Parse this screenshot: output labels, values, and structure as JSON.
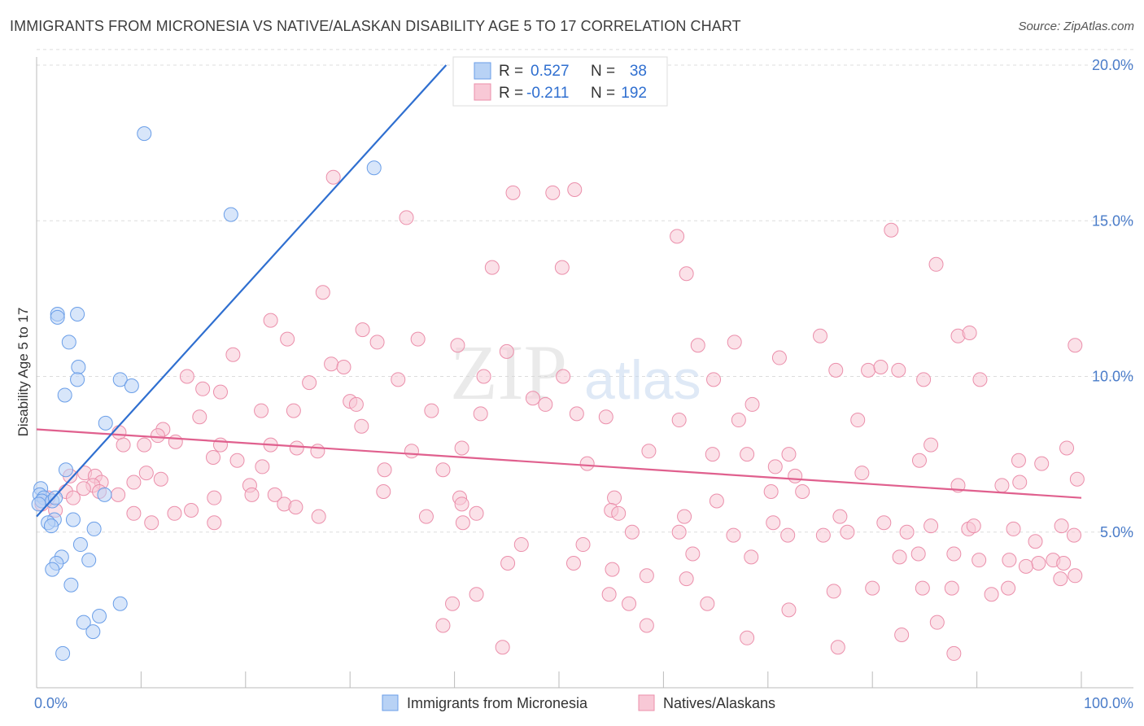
{
  "header": {
    "title": "IMMIGRANTS FROM MICRONESIA VS NATIVE/ALASKAN DISABILITY AGE 5 TO 17 CORRELATION CHART",
    "source": "Source: ZipAtlas.com"
  },
  "watermark": {
    "zip": "ZIP",
    "atlas": "atlas"
  },
  "colors": {
    "blue_fill": "#b8d2f5",
    "blue_stroke": "#6a9ee8",
    "blue_line": "#2f6fd0",
    "pink_fill": "#f8c8d6",
    "pink_stroke": "#eb8fab",
    "pink_line": "#e0608e",
    "value_text": "#2f6fd0",
    "grid": "#dddddd"
  },
  "legend": {
    "blue": {
      "r_label": "R =",
      "r_value": "0.527",
      "n_label": "N =",
      "n_value": "38"
    },
    "pink": {
      "r_label": "R =",
      "r_value": "-0.211",
      "n_label": "N =",
      "n_value": "192"
    }
  },
  "chart_data": {
    "type": "scatter",
    "title": "IMMIGRANTS FROM MICRONESIA VS NATIVE/ALASKAN DISABILITY AGE 5 TO 17 CORRELATION CHART",
    "xlabel": "",
    "ylabel": "Disability Age 5 to 17",
    "xlim": [
      0,
      100
    ],
    "ylim": [
      0,
      20
    ],
    "x_tick_labels": [
      "0.0%",
      "100.0%"
    ],
    "y_ticks": [
      5,
      10,
      15,
      20
    ],
    "y_tick_labels": [
      "5.0%",
      "10.0%",
      "15.0%",
      "20.0%"
    ],
    "grid": true,
    "legend_position": "top-center",
    "series": [
      {
        "name": "Immigrants from Micronesia",
        "color": "#6a9ee8",
        "trend": {
          "x": [
            0,
            39.2
          ],
          "y": [
            5.5,
            20.0
          ]
        },
        "points": [
          [
            10.3,
            17.8
          ],
          [
            32.3,
            16.7
          ],
          [
            18.6,
            15.2
          ],
          [
            2.0,
            12.0
          ],
          [
            3.9,
            12.0
          ],
          [
            2.0,
            11.9
          ],
          [
            3.1,
            11.1
          ],
          [
            4.0,
            10.3
          ],
          [
            3.9,
            9.9
          ],
          [
            8.0,
            9.9
          ],
          [
            9.1,
            9.7
          ],
          [
            2.7,
            9.4
          ],
          [
            6.6,
            8.5
          ],
          [
            2.8,
            7.0
          ],
          [
            0.4,
            6.4
          ],
          [
            0.3,
            6.2
          ],
          [
            0.7,
            6.1
          ],
          [
            0.5,
            6.0
          ],
          [
            1.5,
            6.0
          ],
          [
            1.8,
            6.1
          ],
          [
            6.5,
            6.2
          ],
          [
            1.7,
            5.4
          ],
          [
            3.5,
            5.4
          ],
          [
            1.1,
            5.3
          ],
          [
            1.4,
            5.2
          ],
          [
            5.5,
            5.1
          ],
          [
            4.2,
            4.6
          ],
          [
            2.4,
            4.2
          ],
          [
            5.0,
            4.1
          ],
          [
            1.9,
            4.0
          ],
          [
            1.5,
            3.8
          ],
          [
            3.3,
            3.3
          ],
          [
            8.0,
            2.7
          ],
          [
            6.0,
            2.3
          ],
          [
            4.5,
            2.1
          ],
          [
            5.4,
            1.8
          ],
          [
            2.5,
            1.1
          ],
          [
            0.2,
            5.9
          ]
        ]
      },
      {
        "name": "Natives/Alaskans",
        "color": "#eb8fab",
        "trend": {
          "x": [
            0,
            100
          ],
          "y": [
            8.3,
            6.1
          ]
        },
        "points": [
          [
            28.4,
            16.4
          ],
          [
            51.5,
            16.0
          ],
          [
            45.6,
            15.9
          ],
          [
            49.4,
            15.9
          ],
          [
            35.4,
            15.1
          ],
          [
            61.3,
            14.5
          ],
          [
            81.8,
            14.7
          ],
          [
            43.6,
            13.5
          ],
          [
            50.3,
            13.5
          ],
          [
            86.1,
            13.6
          ],
          [
            62.2,
            13.3
          ],
          [
            27.4,
            12.7
          ],
          [
            22.4,
            11.8
          ],
          [
            31.2,
            11.5
          ],
          [
            24.0,
            11.2
          ],
          [
            32.6,
            11.1
          ],
          [
            36.5,
            11.2
          ],
          [
            40.3,
            11.0
          ],
          [
            63.3,
            11.0
          ],
          [
            66.8,
            11.1
          ],
          [
            75.0,
            11.3
          ],
          [
            88.2,
            11.3
          ],
          [
            89.3,
            11.4
          ],
          [
            99.4,
            11.0
          ],
          [
            18.8,
            10.7
          ],
          [
            45.0,
            10.8
          ],
          [
            71.1,
            10.6
          ],
          [
            28.2,
            10.4
          ],
          [
            29.4,
            10.3
          ],
          [
            76.5,
            10.2
          ],
          [
            79.6,
            10.2
          ],
          [
            80.8,
            10.3
          ],
          [
            82.5,
            10.2
          ],
          [
            14.4,
            10.0
          ],
          [
            26.1,
            9.8
          ],
          [
            34.6,
            9.9
          ],
          [
            42.8,
            10.0
          ],
          [
            50.4,
            10.0
          ],
          [
            64.8,
            9.9
          ],
          [
            84.9,
            9.9
          ],
          [
            90.3,
            9.9
          ],
          [
            15.9,
            9.6
          ],
          [
            17.6,
            9.5
          ],
          [
            30.0,
            9.2
          ],
          [
            47.5,
            9.3
          ],
          [
            30.6,
            9.1
          ],
          [
            48.7,
            9.1
          ],
          [
            68.5,
            9.1
          ],
          [
            21.5,
            8.9
          ],
          [
            24.6,
            8.9
          ],
          [
            31.1,
            8.4
          ],
          [
            37.8,
            8.9
          ],
          [
            42.5,
            8.8
          ],
          [
            51.7,
            8.8
          ],
          [
            54.5,
            8.7
          ],
          [
            61.5,
            8.6
          ],
          [
            67.2,
            8.6
          ],
          [
            78.6,
            8.6
          ],
          [
            15.6,
            8.7
          ],
          [
            12.1,
            8.3
          ],
          [
            7.9,
            8.2
          ],
          [
            11.6,
            8.1
          ],
          [
            8.3,
            7.8
          ],
          [
            10.3,
            7.8
          ],
          [
            13.3,
            7.9
          ],
          [
            17.6,
            7.8
          ],
          [
            22.4,
            7.8
          ],
          [
            24.9,
            7.7
          ],
          [
            35.9,
            7.6
          ],
          [
            40.7,
            7.7
          ],
          [
            26.9,
            7.6
          ],
          [
            16.9,
            7.4
          ],
          [
            19.2,
            7.3
          ],
          [
            21.6,
            7.1
          ],
          [
            33.3,
            7.0
          ],
          [
            38.9,
            7.0
          ],
          [
            52.7,
            7.2
          ],
          [
            58.6,
            7.6
          ],
          [
            64.7,
            7.5
          ],
          [
            68.0,
            7.5
          ],
          [
            70.7,
            7.1
          ],
          [
            72.0,
            7.5
          ],
          [
            72.6,
            6.8
          ],
          [
            79.0,
            6.9
          ],
          [
            84.5,
            7.3
          ],
          [
            85.6,
            7.8
          ],
          [
            94.0,
            7.3
          ],
          [
            96.2,
            7.2
          ],
          [
            98.6,
            7.7
          ],
          [
            3.2,
            6.8
          ],
          [
            4.6,
            6.9
          ],
          [
            5.6,
            6.8
          ],
          [
            9.3,
            6.6
          ],
          [
            10.5,
            6.9
          ],
          [
            11.9,
            6.7
          ],
          [
            20.4,
            6.5
          ],
          [
            22.8,
            6.2
          ],
          [
            6.2,
            6.6
          ],
          [
            5.4,
            6.5
          ],
          [
            4.5,
            6.4
          ],
          [
            6.0,
            6.3
          ],
          [
            7.8,
            6.2
          ],
          [
            2.8,
            6.3
          ],
          [
            3.5,
            6.1
          ],
          [
            1.1,
            6.1
          ],
          [
            0.5,
            5.9
          ],
          [
            1.8,
            5.7
          ],
          [
            17.0,
            6.1
          ],
          [
            20.6,
            6.2
          ],
          [
            23.7,
            5.9
          ],
          [
            33.2,
            6.3
          ],
          [
            40.5,
            6.1
          ],
          [
            40.7,
            5.9
          ],
          [
            55.3,
            6.1
          ],
          [
            65.1,
            6.0
          ],
          [
            70.3,
            6.3
          ],
          [
            73.3,
            6.3
          ],
          [
            88.2,
            6.5
          ],
          [
            92.4,
            6.5
          ],
          [
            94.1,
            6.6
          ],
          [
            99.6,
            6.7
          ],
          [
            9.3,
            5.6
          ],
          [
            13.2,
            5.6
          ],
          [
            14.8,
            5.7
          ],
          [
            24.8,
            5.8
          ],
          [
            37.3,
            5.5
          ],
          [
            42.1,
            5.6
          ],
          [
            55.0,
            5.7
          ],
          [
            55.7,
            5.6
          ],
          [
            62.0,
            5.5
          ],
          [
            70.5,
            5.3
          ],
          [
            76.9,
            5.5
          ],
          [
            81.1,
            5.3
          ],
          [
            85.6,
            5.2
          ],
          [
            89.2,
            5.1
          ],
          [
            93.5,
            5.1
          ],
          [
            98.1,
            5.2
          ],
          [
            11.0,
            5.3
          ],
          [
            17.0,
            5.3
          ],
          [
            27.0,
            5.5
          ],
          [
            40.8,
            5.3
          ],
          [
            57.0,
            5.0
          ],
          [
            61.5,
            5.0
          ],
          [
            66.7,
            4.9
          ],
          [
            71.9,
            4.9
          ],
          [
            75.3,
            4.9
          ],
          [
            77.6,
            5.0
          ],
          [
            83.3,
            5.0
          ],
          [
            89.7,
            5.2
          ],
          [
            95.6,
            4.7
          ],
          [
            99.3,
            4.9
          ],
          [
            46.4,
            4.6
          ],
          [
            52.3,
            4.6
          ],
          [
            62.8,
            4.3
          ],
          [
            68.4,
            4.2
          ],
          [
            82.6,
            4.2
          ],
          [
            84.4,
            4.3
          ],
          [
            87.8,
            4.3
          ],
          [
            90.2,
            4.1
          ],
          [
            93.1,
            4.1
          ],
          [
            95.9,
            4.0
          ],
          [
            97.3,
            4.1
          ],
          [
            98.3,
            4.0
          ],
          [
            45.1,
            4.0
          ],
          [
            51.4,
            4.0
          ],
          [
            55.1,
            3.8
          ],
          [
            58.4,
            3.6
          ],
          [
            62.2,
            3.5
          ],
          [
            76.3,
            3.1
          ],
          [
            80.0,
            3.2
          ],
          [
            84.8,
            3.2
          ],
          [
            87.6,
            3.2
          ],
          [
            93.0,
            3.2
          ],
          [
            94.7,
            3.9
          ],
          [
            98.0,
            3.5
          ],
          [
            99.4,
            3.6
          ],
          [
            91.4,
            3.0
          ],
          [
            42.1,
            3.0
          ],
          [
            54.8,
            3.0
          ],
          [
            39.8,
            2.7
          ],
          [
            56.7,
            2.7
          ],
          [
            64.2,
            2.7
          ],
          [
            72.0,
            2.5
          ],
          [
            86.2,
            2.1
          ],
          [
            38.9,
            2.0
          ],
          [
            58.4,
            2.0
          ],
          [
            68.0,
            1.6
          ],
          [
            82.8,
            1.7
          ],
          [
            44.6,
            1.3
          ],
          [
            76.7,
            1.3
          ],
          [
            87.8,
            1.1
          ]
        ]
      }
    ]
  },
  "axes": {
    "x_left_label": "0.0%",
    "x_right_label": "100.0%",
    "y_label": "Disability Age 5 to 17"
  },
  "bottom_legend": {
    "blue_label": "Immigrants from Micronesia",
    "pink_label": "Natives/Alaskans"
  }
}
